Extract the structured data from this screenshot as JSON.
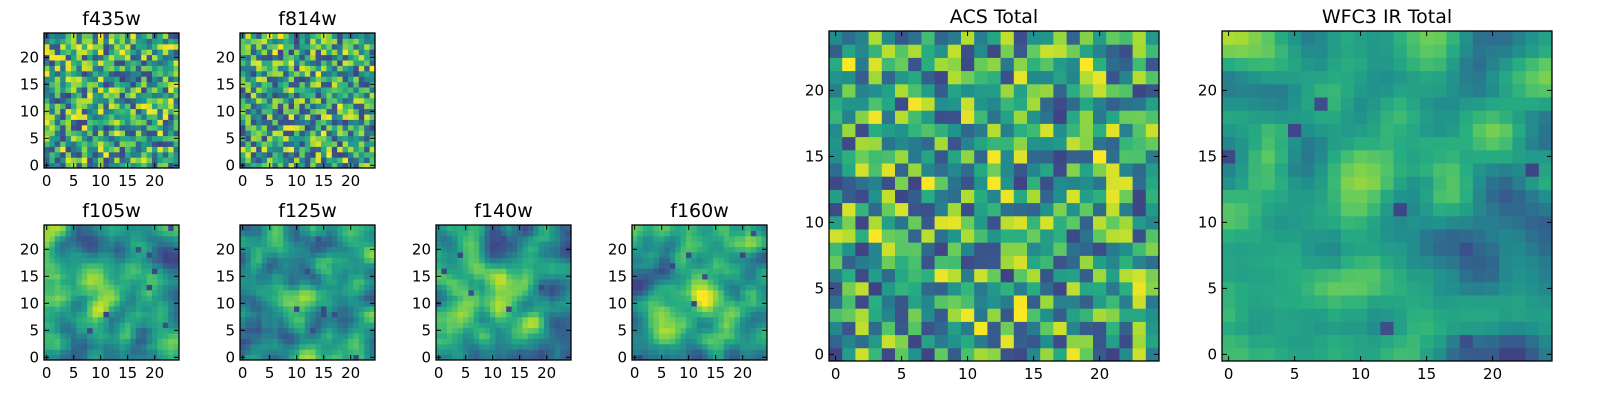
{
  "chart_data": [
    {
      "type": "heatmap",
      "title": "f435w",
      "x_ticks": [
        0,
        5,
        10,
        15,
        20
      ],
      "y_ticks": [
        0,
        5,
        10,
        15,
        20
      ],
      "xlim": [
        0,
        25
      ],
      "ylim": [
        0,
        25
      ],
      "grid_size": 25,
      "colormap": "viridis",
      "texture": "noise",
      "seed": 11
    },
    {
      "type": "heatmap",
      "title": "f814w",
      "x_ticks": [
        0,
        5,
        10,
        15,
        20
      ],
      "y_ticks": [
        0,
        5,
        10,
        15,
        20
      ],
      "xlim": [
        0,
        25
      ],
      "ylim": [
        0,
        25
      ],
      "grid_size": 25,
      "colormap": "viridis",
      "texture": "noise",
      "seed": 23
    },
    {
      "type": "heatmap",
      "title": "f105w",
      "x_ticks": [
        0,
        5,
        10,
        15,
        20
      ],
      "y_ticks": [
        0,
        5,
        10,
        15,
        20
      ],
      "xlim": [
        0,
        25
      ],
      "ylim": [
        0,
        25
      ],
      "grid_size": 25,
      "colormap": "viridis",
      "texture": "smooth",
      "seed": 37,
      "bright_center": [
        11,
        11
      ]
    },
    {
      "type": "heatmap",
      "title": "f125w",
      "x_ticks": [
        0,
        5,
        10,
        15,
        20
      ],
      "y_ticks": [
        0,
        5,
        10,
        15,
        20
      ],
      "xlim": [
        0,
        25
      ],
      "ylim": [
        0,
        25
      ],
      "grid_size": 25,
      "colormap": "viridis",
      "texture": "smooth",
      "seed": 41,
      "bright_center": [
        12,
        10
      ]
    },
    {
      "type": "heatmap",
      "title": "f140w",
      "x_ticks": [
        0,
        5,
        10,
        15,
        20
      ],
      "y_ticks": [
        0,
        5,
        10,
        15,
        20
      ],
      "xlim": [
        0,
        25
      ],
      "ylim": [
        0,
        25
      ],
      "grid_size": 25,
      "colormap": "viridis",
      "texture": "smooth",
      "seed": 53,
      "bright_center": [
        12,
        11
      ]
    },
    {
      "type": "heatmap",
      "title": "f160w",
      "x_ticks": [
        0,
        5,
        10,
        15,
        20
      ],
      "y_ticks": [
        0,
        5,
        10,
        15,
        20
      ],
      "xlim": [
        0,
        25
      ],
      "ylim": [
        0,
        25
      ],
      "grid_size": 25,
      "colormap": "viridis",
      "texture": "smooth",
      "seed": 67,
      "bright_center": [
        12,
        12
      ]
    },
    {
      "type": "heatmap",
      "title": "ACS Total",
      "x_ticks": [
        0,
        5,
        10,
        15,
        20
      ],
      "y_ticks": [
        0,
        5,
        10,
        15,
        20
      ],
      "xlim": [
        0,
        25
      ],
      "ylim": [
        0,
        25
      ],
      "grid_size": 25,
      "colormap": "viridis",
      "texture": "noise",
      "seed": 79
    },
    {
      "type": "heatmap",
      "title": "WFC3 IR Total",
      "x_ticks": [
        0,
        5,
        10,
        15,
        20
      ],
      "y_ticks": [
        0,
        5,
        10,
        15,
        20
      ],
      "xlim": [
        0,
        25
      ],
      "ylim": [
        0,
        25
      ],
      "grid_size": 25,
      "colormap": "viridis",
      "texture": "smooth",
      "seed": 83,
      "bright_center": [
        12,
        12
      ]
    }
  ]
}
